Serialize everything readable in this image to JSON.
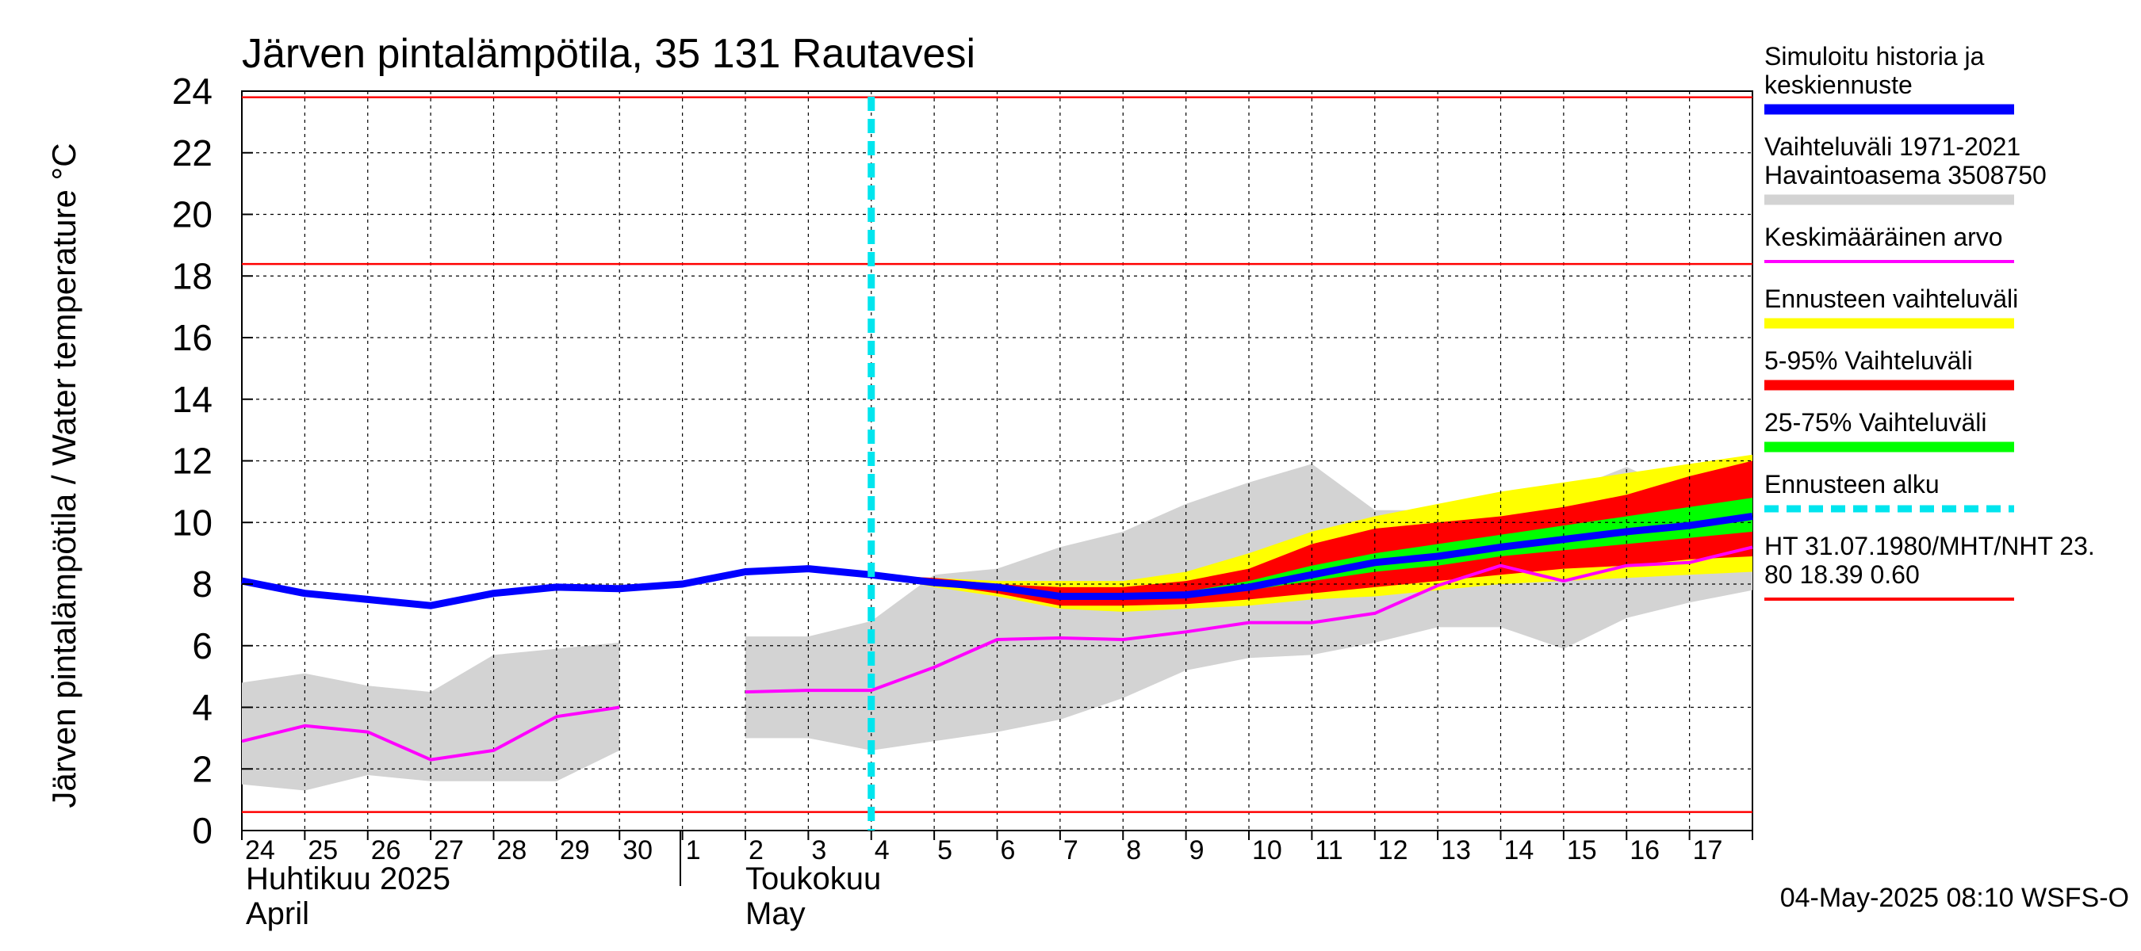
{
  "title": "Järven pintalämpötila, 35 131 Rautavesi",
  "y_axis_label": "Järven pintalämpötila / Water temperature °C",
  "footer": "04-May-2025 08:10 WSFS-O",
  "month_labels": [
    {
      "fi": "Huhtikuu  2025",
      "en": "April"
    },
    {
      "fi": "Toukokuu",
      "en": "May"
    }
  ],
  "legend": [
    {
      "label": "Simuloitu historia ja\nkeskiennuste",
      "color": "#0000ff",
      "style": "thick"
    },
    {
      "label": "Vaihteluväli 1971-2021\n Havaintoasema 3508750",
      "color": "#d3d3d3",
      "style": "thick"
    },
    {
      "label": "Keskimääräinen arvo",
      "color": "#ff00ff",
      "style": "thin"
    },
    {
      "label": "Ennusteen vaihteluväli",
      "color": "#ffff00",
      "style": "thick"
    },
    {
      "label": "5-95% Vaihteluväli",
      "color": "#ff0000",
      "style": "thick"
    },
    {
      "label": "25-75% Vaihteluväli",
      "color": "#00ff00",
      "style": "thick"
    },
    {
      "label": "Ennusteen alku",
      "color": "#00e5ee",
      "style": "dashed"
    },
    {
      "label": "HT 31.07.1980/MHT/NHT 23.\n80 18.39 0.60",
      "color": "#ff0000",
      "style": "thin"
    }
  ],
  "chart_data": {
    "type": "line",
    "title": "Järven pintalämpötila, 35 131 Rautavesi",
    "ylabel": "Järven pintalämpötila / Water temperature °C",
    "ylim": [
      0,
      24
    ],
    "yticks": [
      0,
      2,
      4,
      6,
      8,
      10,
      12,
      14,
      16,
      18,
      20,
      22,
      24
    ],
    "x_start": "2025-04-24",
    "x_end": "2025-05-17",
    "day_ticks": [
      "24",
      "25",
      "26",
      "27",
      "28",
      "29",
      "30",
      "1",
      "2",
      "3",
      "4",
      "5",
      "6",
      "7",
      "8",
      "9",
      "10",
      "11",
      "12",
      "13",
      "14",
      "15",
      "16",
      "17"
    ],
    "grid": true,
    "forecast_start": "2025-05-04",
    "reference_lines": [
      {
        "name": "HT",
        "value": 23.8
      },
      {
        "name": "MHT",
        "value": 18.39
      },
      {
        "name": "NHT",
        "value": 0.6
      }
    ],
    "series": [
      {
        "name": "Simuloitu historia ja keskiennuste",
        "color": "#0000ff",
        "x": [
          "2025-04-24",
          "2025-04-25",
          "2025-04-26",
          "2025-04-27",
          "2025-04-28",
          "2025-04-29",
          "2025-04-30",
          "2025-05-01",
          "2025-05-02",
          "2025-05-03",
          "2025-05-04",
          "2025-05-05",
          "2025-05-06",
          "2025-05-07",
          "2025-05-08",
          "2025-05-09",
          "2025-05-10",
          "2025-05-11",
          "2025-05-12",
          "2025-05-13",
          "2025-05-14",
          "2025-05-15",
          "2025-05-16",
          "2025-05-17",
          "2025-05-18"
        ],
        "y": [
          8.1,
          7.7,
          7.5,
          7.3,
          7.7,
          7.9,
          7.85,
          8.0,
          8.4,
          8.5,
          8.3,
          8.05,
          7.9,
          7.6,
          7.6,
          7.65,
          7.9,
          8.3,
          8.7,
          8.9,
          9.2,
          9.45,
          9.7,
          9.9,
          10.2
        ]
      },
      {
        "name": "Keskimääräinen arvo",
        "color": "#ff00ff",
        "segments": [
          {
            "x": [
              "2025-04-24",
              "2025-04-25",
              "2025-04-26",
              "2025-04-27",
              "2025-04-28",
              "2025-04-29",
              "2025-04-30"
            ],
            "y": [
              2.9,
              3.4,
              3.2,
              2.3,
              2.6,
              3.7,
              4.0
            ]
          },
          {
            "x": [
              "2025-05-02",
              "2025-05-03",
              "2025-05-04",
              "2025-05-05",
              "2025-05-06",
              "2025-05-07",
              "2025-05-08",
              "2025-05-09",
              "2025-05-10",
              "2025-05-11",
              "2025-05-12",
              "2025-05-13",
              "2025-05-14",
              "2025-05-15",
              "2025-05-16",
              "2025-05-17",
              "2025-05-18"
            ],
            "y": [
              4.5,
              4.55,
              4.55,
              5.3,
              6.2,
              6.25,
              6.2,
              6.45,
              6.75,
              6.75,
              7.05,
              7.95,
              8.6,
              8.1,
              8.6,
              8.7,
              9.2
            ]
          }
        ]
      },
      {
        "name": "Vaihteluväli 1971-2021",
        "color": "#d3d3d3",
        "type": "band",
        "segments": [
          {
            "x": [
              "2025-04-24",
              "2025-04-25",
              "2025-04-26",
              "2025-04-27",
              "2025-04-28",
              "2025-04-29",
              "2025-04-30"
            ],
            "low": [
              1.5,
              1.3,
              1.8,
              1.6,
              1.6,
              1.6,
              2.6
            ],
            "high": [
              4.8,
              5.1,
              4.7,
              4.5,
              5.7,
              5.9,
              6.1
            ]
          },
          {
            "x": [
              "2025-05-02",
              "2025-05-03",
              "2025-05-04",
              "2025-05-05",
              "2025-05-06",
              "2025-05-07",
              "2025-05-08",
              "2025-05-09",
              "2025-05-10",
              "2025-05-11",
              "2025-05-12",
              "2025-05-13",
              "2025-05-14",
              "2025-05-15",
              "2025-05-16",
              "2025-05-17",
              "2025-05-18"
            ],
            "low": [
              3.0,
              3.0,
              2.6,
              2.9,
              3.2,
              3.6,
              4.3,
              5.2,
              5.6,
              5.7,
              6.1,
              6.6,
              6.6,
              5.9,
              6.9,
              7.4,
              7.8
            ],
            "high": [
              6.3,
              6.3,
              6.8,
              8.3,
              8.5,
              9.2,
              9.7,
              10.6,
              11.3,
              11.9,
              10.4,
              10.4,
              10.9,
              11.0,
              11.8,
              10.9,
              11.3
            ]
          }
        ]
      },
      {
        "name": "Ennusteen vaihteluväli",
        "color": "#ffff00",
        "type": "band",
        "x": [
          "2025-05-04",
          "2025-05-05",
          "2025-05-06",
          "2025-05-07",
          "2025-05-08",
          "2025-05-09",
          "2025-05-10",
          "2025-05-11",
          "2025-05-12",
          "2025-05-13",
          "2025-05-14",
          "2025-05-15",
          "2025-05-16",
          "2025-05-17",
          "2025-05-18"
        ],
        "low": [
          8.3,
          7.9,
          7.6,
          7.2,
          7.1,
          7.2,
          7.3,
          7.5,
          7.6,
          7.8,
          8.0,
          8.1,
          8.2,
          8.3,
          8.4
        ],
        "high": [
          8.3,
          8.2,
          8.1,
          8.1,
          8.1,
          8.4,
          9.0,
          9.7,
          10.2,
          10.6,
          11.0,
          11.3,
          11.6,
          11.9,
          12.2
        ]
      },
      {
        "name": "5-95% Vaihteluväli",
        "color": "#ff0000",
        "type": "band",
        "x": [
          "2025-05-04",
          "2025-05-05",
          "2025-05-06",
          "2025-05-07",
          "2025-05-08",
          "2025-05-09",
          "2025-05-10",
          "2025-05-11",
          "2025-05-12",
          "2025-05-13",
          "2025-05-14",
          "2025-05-15",
          "2025-05-16",
          "2025-05-17",
          "2025-05-18"
        ],
        "low": [
          8.3,
          8.0,
          7.7,
          7.3,
          7.3,
          7.35,
          7.5,
          7.7,
          7.9,
          8.1,
          8.3,
          8.5,
          8.6,
          8.8,
          8.9
        ],
        "high": [
          8.3,
          8.2,
          8.0,
          7.9,
          7.9,
          8.1,
          8.5,
          9.3,
          9.8,
          10.0,
          10.2,
          10.5,
          10.9,
          11.5,
          12.0
        ]
      },
      {
        "name": "25-75% Vaihteluväli",
        "color": "#00ff00",
        "type": "band",
        "x": [
          "2025-05-08",
          "2025-05-09",
          "2025-05-10",
          "2025-05-11",
          "2025-05-12",
          "2025-05-13",
          "2025-05-14",
          "2025-05-15",
          "2025-05-16",
          "2025-05-17",
          "2025-05-18"
        ],
        "low": [
          7.6,
          7.6,
          7.8,
          8.1,
          8.4,
          8.6,
          8.9,
          9.1,
          9.3,
          9.5,
          9.7
        ],
        "high": [
          7.7,
          7.75,
          8.1,
          8.6,
          9.0,
          9.3,
          9.6,
          9.9,
          10.2,
          10.5,
          10.8
        ]
      }
    ]
  }
}
